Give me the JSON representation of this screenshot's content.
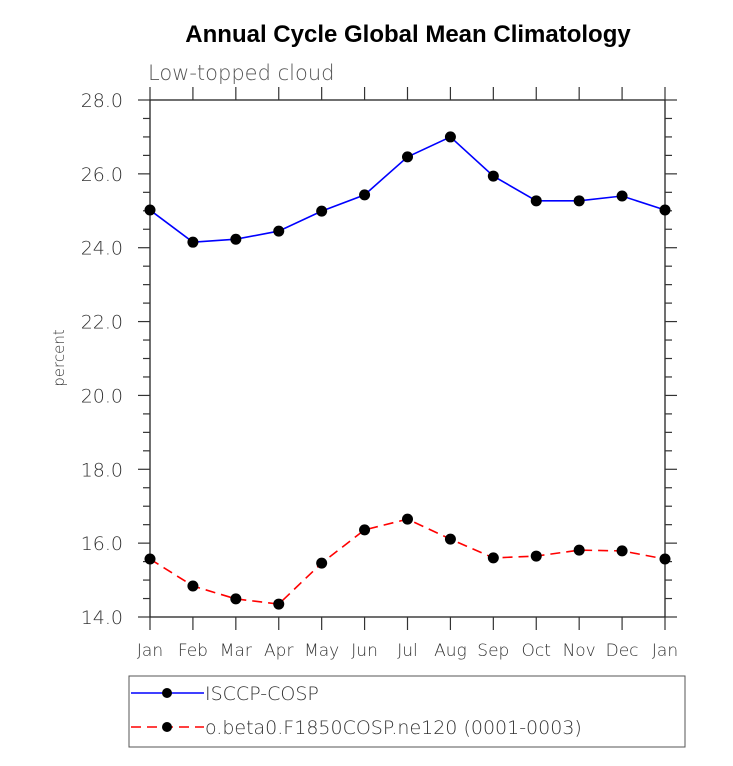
{
  "chart_data": {
    "type": "line",
    "title": "Annual Cycle Global Mean Climatology",
    "subtitle": "Low-topped cloud",
    "xlabel": "",
    "ylabel": "percent",
    "categories": [
      "Jan",
      "Feb",
      "Mar",
      "Apr",
      "May",
      "Jun",
      "Jul",
      "Aug",
      "Sep",
      "Oct",
      "Nov",
      "Dec",
      "Jan"
    ],
    "ylim": [
      14.0,
      28.0
    ],
    "yticks": [
      14.0,
      16.0,
      18.0,
      20.0,
      22.0,
      24.0,
      26.0,
      28.0
    ],
    "ytick_labels": [
      "14.0",
      "16.0",
      "18.0",
      "20.0",
      "22.0",
      "24.0",
      "26.0",
      "28.0"
    ],
    "y_minor_step": 0.5,
    "grid": false,
    "legend_position": "bottom",
    "series": [
      {
        "name": "ISCCP-COSP",
        "color": "#0000ff",
        "line_style": "solid",
        "marker": "filled-circle",
        "marker_color": "#000000",
        "values": [
          25.02,
          24.15,
          24.23,
          24.45,
          24.99,
          25.43,
          26.46,
          27.0,
          25.94,
          25.27,
          25.27,
          25.4,
          25.02
        ]
      },
      {
        "name": "o.beta0.F1850COSP.ne120 (0001-0003)",
        "color": "#ff0000",
        "line_style": "dashed",
        "marker": "filled-circle",
        "marker_color": "#000000",
        "values": [
          15.57,
          14.84,
          14.49,
          14.35,
          15.46,
          16.36,
          16.65,
          16.11,
          15.6,
          15.65,
          15.81,
          15.79,
          15.57
        ]
      }
    ]
  }
}
